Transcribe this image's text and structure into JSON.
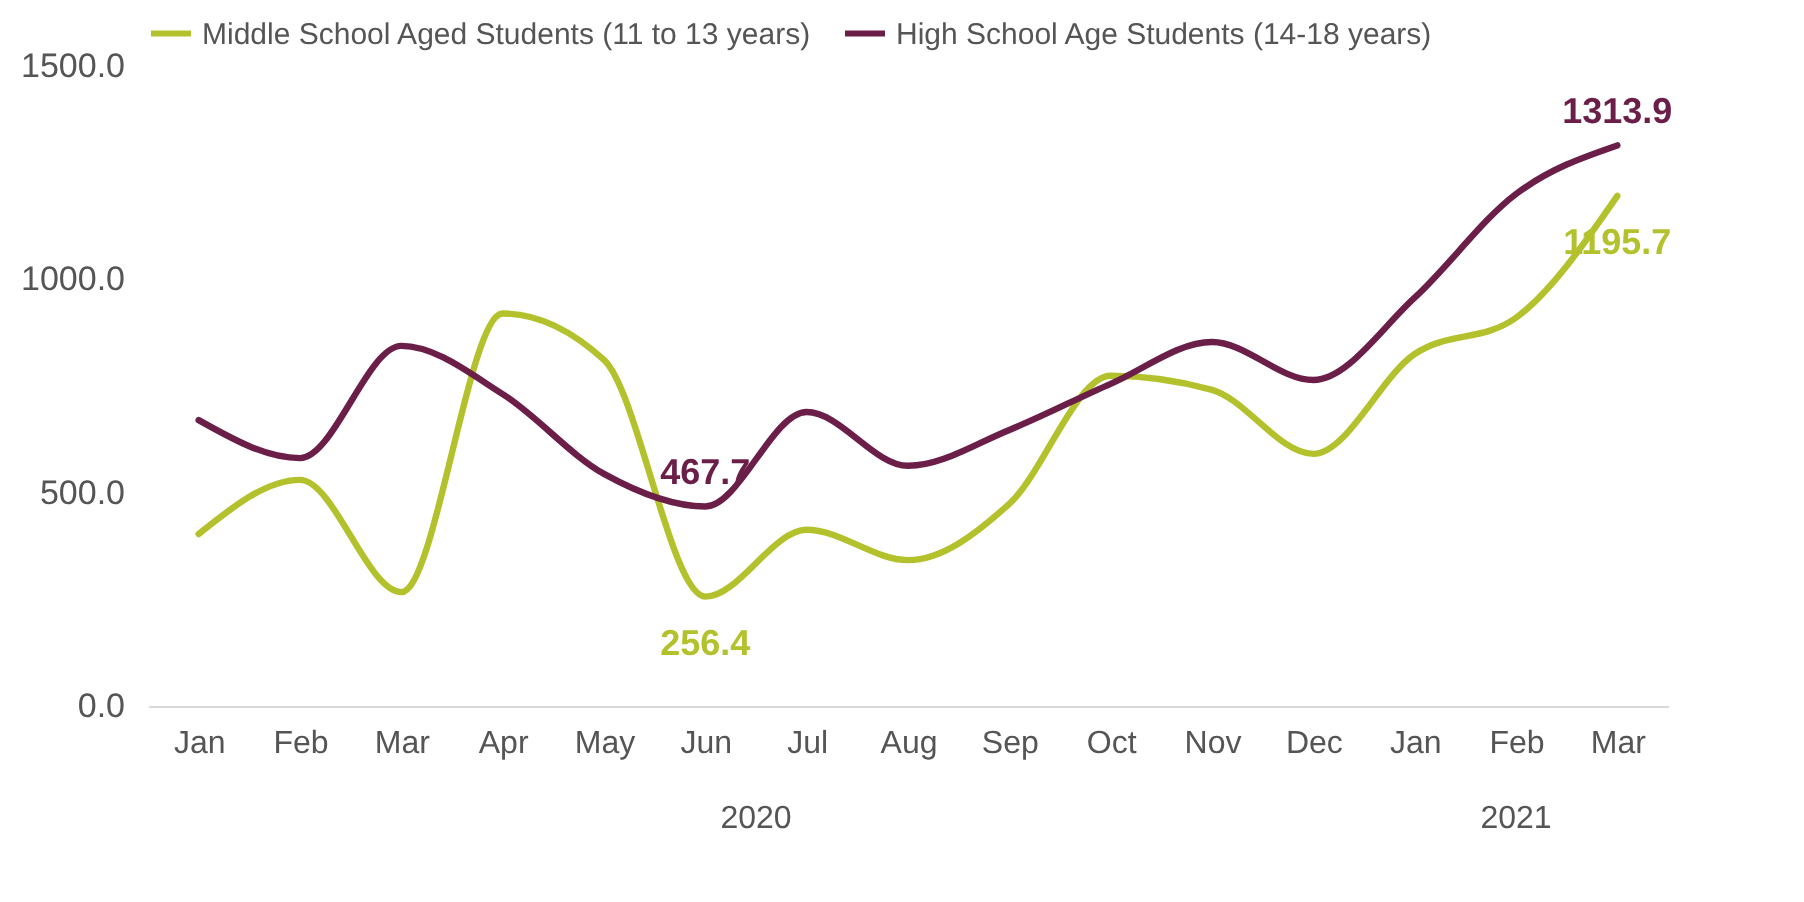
{
  "chart_data": {
    "type": "line",
    "categories": [
      "Jan",
      "Feb",
      "Mar",
      "Apr",
      "May",
      "Jun",
      "Jul",
      "Aug",
      "Sep",
      "Oct",
      "Nov",
      "Dec",
      "Jan",
      "Feb",
      "Mar"
    ],
    "series": [
      {
        "name": "Middle School Aged Students (11 to 13 years)",
        "color": "#b3c22c",
        "values": [
          403,
          530,
          267,
          920,
          811,
          256.4,
          413,
          342,
          474,
          774,
          741,
          591,
          825,
          910,
          1195.7
        ],
        "value_labels": [
          null,
          null,
          null,
          null,
          null,
          "256.4",
          null,
          null,
          null,
          null,
          null,
          null,
          null,
          null,
          "1195.7"
        ]
      },
      {
        "name": "High School Age Students (14-18 years)",
        "color": "#6b1f48",
        "values": [
          670,
          581,
          844,
          731,
          544,
          467.7,
          689,
          563,
          647,
          755,
          853,
          764,
          957,
          1200,
          1313.9
        ],
        "value_labels": [
          null,
          null,
          null,
          null,
          null,
          "467.7",
          null,
          null,
          null,
          null,
          null,
          null,
          null,
          null,
          "1313.9"
        ]
      }
    ],
    "ylim": [
      0,
      1500
    ],
    "yticks": [
      {
        "value": 0,
        "label": "0.0"
      },
      {
        "value": 500,
        "label": "500.0"
      },
      {
        "value": 1000,
        "label": "1000.0"
      },
      {
        "value": 1500,
        "label": "1500.0"
      }
    ],
    "annotations": [
      "2020",
      "2021"
    ],
    "legend": "top left",
    "grid": false,
    "marker": "none",
    "line_style": "solid"
  }
}
